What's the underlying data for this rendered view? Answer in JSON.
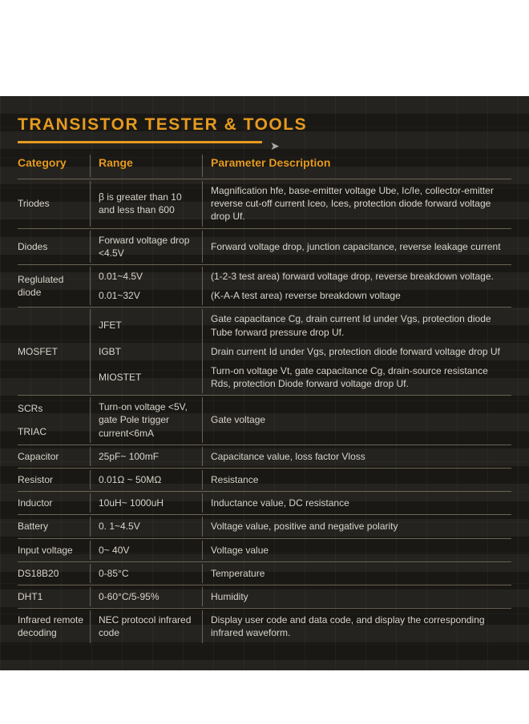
{
  "title": "TRANSISTOR TESTER & TOOLS",
  "headers": {
    "c1": "Category",
    "c2": "Range",
    "c3": "Parameter Description"
  },
  "rows": {
    "triodes": {
      "cat": "Triodes",
      "range": "β is greater than 10 and less than 600",
      "desc": "Magnification hfe, base-emitter voltage Ube, Ic/Ie, collector-emitter reverse cut-off current Iceo, Ices, protection diode forward voltage drop Uf."
    },
    "diodes": {
      "cat": "Diodes",
      "range": "Forward voltage drop <4.5V",
      "desc": "Forward voltage drop, junction capacitance, reverse leakage current"
    },
    "regdiode": {
      "cat": "Reglulated diode",
      "r1": "0.01~4.5V",
      "r2": "0.01~32V",
      "d1": "(1-2-3 test area) forward voltage drop, reverse breakdown voltage.",
      "d2": "(K-A-A test area) reverse breakdown voltage"
    },
    "mosfet": {
      "cat": "MOSFET",
      "r1": "JFET",
      "r2": "IGBT",
      "r3": "MIOSTET",
      "d1": "Gate capacitance Cg, drain current Id under Vgs, protection diode Tube forward pressure drop Uf.",
      "d2": "Drain current Id under Vgs, protection diode forward voltage drop Uf",
      "d3": "Turn-on voltage Vt, gate capacitance Cg, drain-source resistance Rds, protection Diode forward voltage drop Uf."
    },
    "scr": {
      "cat1": "SCRs",
      "cat2": "TRIAC",
      "range": "Turn-on voltage <5V, gate Pole trigger current<6mA",
      "desc": "Gate voltage"
    },
    "cap": {
      "cat": "Capacitor",
      "range": "25pF~ 100mF",
      "desc": "Capacitance value, loss factor Vloss"
    },
    "res": {
      "cat": "Resistor",
      "range": "0.01Ω ~ 50MΩ",
      "desc": "Resistance"
    },
    "ind": {
      "cat": "Inductor",
      "range": "10uH~ 1000uH",
      "desc": "Inductance value, DC resistance"
    },
    "bat": {
      "cat": "Battery",
      "range": "0. 1~4.5V",
      "desc": "Voltage value, positive and negative polarity"
    },
    "vin": {
      "cat": "Input voltage",
      "range": "0~ 40V",
      "desc": "Voltage value"
    },
    "ds18": {
      "cat": "DS18B20",
      "range": "0-85°C",
      "desc": "Temperature"
    },
    "dht1": {
      "cat": "DHT1",
      "range": "0-60°C/5-95%",
      "desc": "Humidity"
    },
    "ir": {
      "cat": "Infrared remote decoding",
      "range": "NEC protocol infrared code",
      "desc": "Display user code and data code, and display the corresponding infrared waveform."
    }
  }
}
